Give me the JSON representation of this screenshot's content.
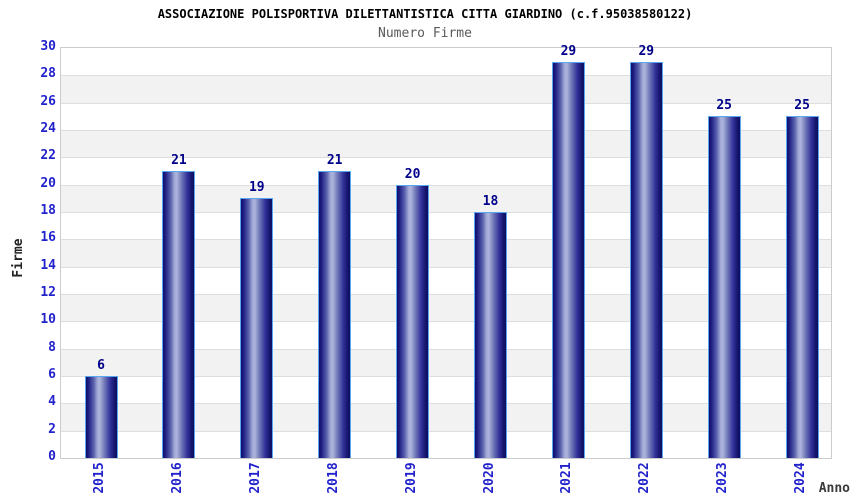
{
  "chart_data": {
    "type": "bar",
    "title": "ASSOCIAZIONE POLISPORTIVA DILETTANTISTICA CITTA GIARDINO (c.f.95038580122)",
    "subtitle": "Numero Firme",
    "categories": [
      "2015",
      "2016",
      "2017",
      "2018",
      "2019",
      "2020",
      "2021",
      "2022",
      "2023",
      "2024"
    ],
    "values": [
      6,
      21,
      19,
      21,
      20,
      18,
      29,
      29,
      25,
      25
    ],
    "xlabel": "Anno",
    "ylabel": "Firme",
    "ylim": [
      0,
      30
    ],
    "ytick_step": 2,
    "grid": "horizontal gridlines every 2 units with alternating white/gray bands",
    "legend": "none",
    "colors": {
      "tick_label_blue": "#2222cc",
      "value_label_navy": "#00008b",
      "bar_dark_navy": "#10106a",
      "bar_light_center": "#abb2da",
      "bar_border_light_blue": "#58a6f0",
      "band_gray": "#f2f2f2",
      "grid_line": "#dedede",
      "plot_border": "#cccccc",
      "title_color": "#000000",
      "subtitle_gray": "#5a5a5a"
    }
  }
}
